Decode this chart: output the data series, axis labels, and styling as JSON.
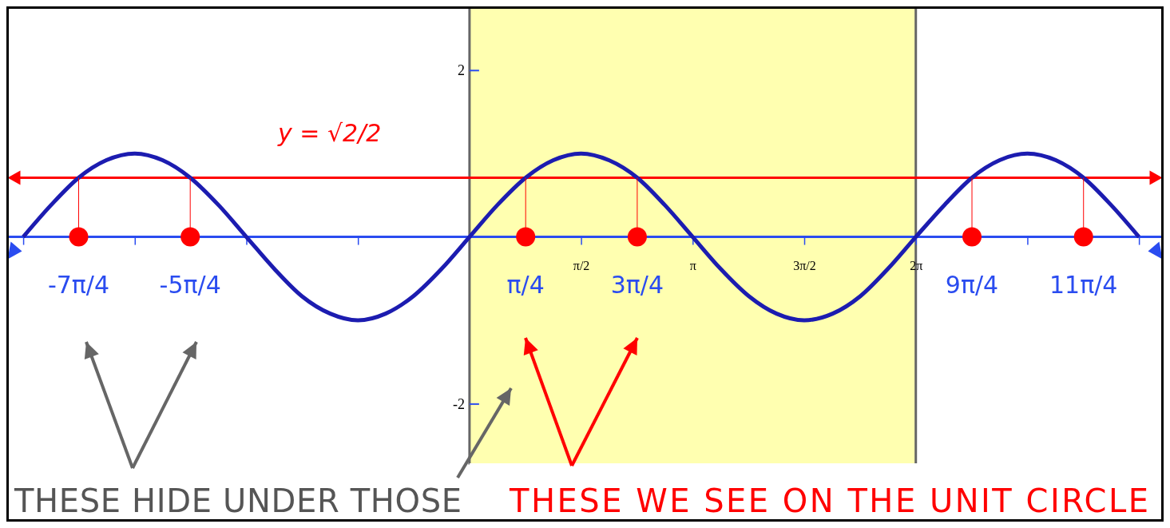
{
  "chart_data": {
    "type": "line",
    "xlim": [
      -6.5,
      9.75
    ],
    "ylim": [
      -3.4,
      2.75
    ],
    "xticks": [
      {
        "value": -6.28,
        "label": null
      },
      {
        "value": -4.71,
        "label": null
      },
      {
        "value": -3.14,
        "label": null
      },
      {
        "value": -1.57,
        "label": null
      },
      {
        "value": 1.57,
        "label": "π/2"
      },
      {
        "value": 3.14,
        "label": "π"
      },
      {
        "value": 4.71,
        "label": "3π/2"
      },
      {
        "value": 6.28,
        "label": "2π"
      },
      {
        "value": 7.85,
        "label": null
      },
      {
        "value": 9.42,
        "label": null
      }
    ],
    "yticks": [
      -2,
      2
    ],
    "series": [
      {
        "color": "#1c1cb0",
        "x": [
          -6.28,
          -5.89,
          -5.5,
          -5.11,
          -4.71,
          -4.32,
          -3.93,
          -3.53,
          -3.14,
          -2.75,
          -2.36,
          -1.96,
          -1.57,
          -1.18,
          -0.79,
          -0.39,
          0,
          0.39,
          0.79,
          1.18,
          1.57,
          1.96,
          2.36,
          2.75,
          3.14,
          3.53,
          3.93,
          4.32,
          4.71,
          5.11,
          5.5,
          5.89,
          6.28,
          6.68,
          7.07,
          7.46,
          7.85,
          8.25,
          8.64,
          9.03,
          9.42
        ],
        "values": [
          0,
          0.38,
          0.71,
          0.92,
          1,
          0.92,
          0.71,
          0.38,
          0,
          -0.38,
          -0.71,
          -0.92,
          -1,
          -0.92,
          -0.71,
          -0.38,
          0,
          0.38,
          0.71,
          0.92,
          1,
          0.92,
          0.71,
          0.38,
          0,
          -0.38,
          -0.71,
          -0.92,
          -1,
          -0.92,
          -0.71,
          -0.38,
          0,
          0.38,
          0.71,
          0.92,
          1,
          0.92,
          0.71,
          0.38,
          0
        ]
      },
      {
        "type": "scatter",
        "color": "#ff0000",
        "marker": "circle",
        "x": [
          -5.5,
          -3.93,
          0.79,
          2.36,
          7.07,
          8.64
        ],
        "values": [
          0,
          0,
          0,
          0,
          0,
          0
        ]
      }
    ],
    "ref_lines": [
      {
        "axis": "y",
        "value": 0.71,
        "label": "y = √2/2",
        "color": "#ff0000"
      }
    ],
    "bands": [
      {
        "axis": "x",
        "from": 0,
        "to": 6.28,
        "color": "#ffffb0"
      }
    ],
    "annotations": [
      {
        "text": "-7π/4",
        "x": -5.5,
        "y": 0
      },
      {
        "text": "-5π/4",
        "x": -3.93,
        "y": 0
      },
      {
        "text": "π/4",
        "x": 0.79,
        "y": 0
      },
      {
        "text": "3π/4",
        "x": 2.36,
        "y": 0
      },
      {
        "text": "9π/4",
        "x": 7.07,
        "y": 0
      },
      {
        "text": "11π/4",
        "x": 8.64,
        "y": 0
      },
      "THESE HIDE UNDER THOSE",
      "THESE WE SEE ON THE UNIT CIRCLE"
    ],
    "grid": false
  }
}
